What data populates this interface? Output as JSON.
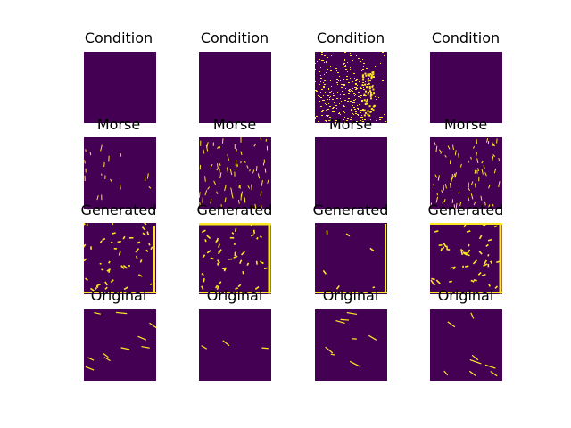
{
  "figure": {
    "rows": [
      {
        "title": "Condition"
      },
      {
        "title": "Morse"
      },
      {
        "title": "Generated"
      },
      {
        "title": "Original"
      }
    ],
    "columns": 4,
    "colors": {
      "background": "#440154",
      "foreground": "#fde725"
    }
  }
}
